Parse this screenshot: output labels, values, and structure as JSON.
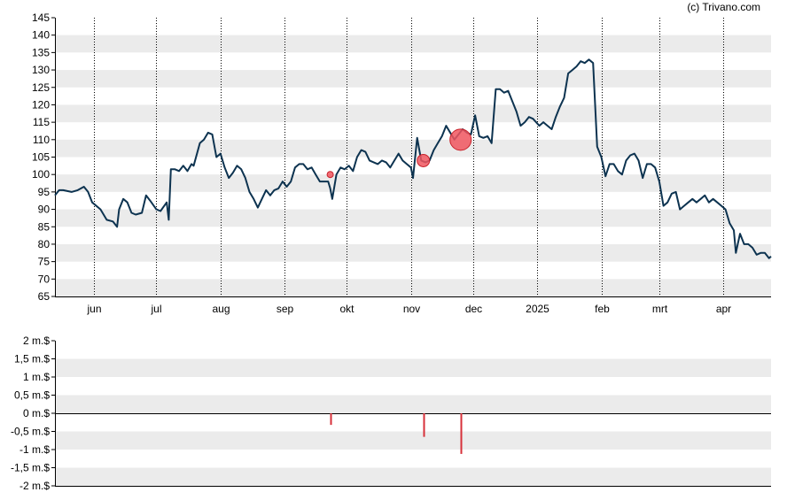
{
  "credit": "(c) Trivano.com",
  "colors": {
    "price_line": "#0d3350",
    "band": "#ebebeb",
    "marker_fill": "#f0565f",
    "marker_stroke": "#c8232c",
    "volume_bar": "#d7303a"
  },
  "chart_data": [
    {
      "type": "line",
      "title": "",
      "xlabel": "",
      "ylabel": "",
      "ylim": [
        65,
        145
      ],
      "yticks": [
        "145",
        "140",
        "135",
        "130",
        "125",
        "120",
        "115",
        "110",
        "105",
        "100",
        "95",
        "90",
        "85",
        "80",
        "75",
        "70",
        "65"
      ],
      "xticks": [
        "jun",
        "jul",
        "aug",
        "sep",
        "okt",
        "nov",
        "dec",
        "2025",
        "feb",
        "mrt",
        "apr"
      ],
      "x_range": [
        "2024-05-13",
        "2025-04-24"
      ],
      "grid": "horizontal bands, dotted vertical lines at month starts",
      "series": [
        {
          "points": [
            [
              "2024-05-13",
              94
            ],
            [
              "2024-05-15",
              95.5
            ],
            [
              "2024-05-17",
              95.5
            ],
            [
              "2024-05-21",
              95
            ],
            [
              "2024-05-24",
              95.5
            ],
            [
              "2024-05-27",
              96.5
            ],
            [
              "2024-05-29",
              95
            ],
            [
              "2024-05-31",
              92
            ],
            [
              "2024-06-04",
              90
            ],
            [
              "2024-06-07",
              87
            ],
            [
              "2024-06-10",
              86.5
            ],
            [
              "2024-06-12",
              85
            ],
            [
              "2024-06-13",
              90
            ],
            [
              "2024-06-15",
              93
            ],
            [
              "2024-06-17",
              92
            ],
            [
              "2024-06-19",
              89
            ],
            [
              "2024-06-21",
              88.5
            ],
            [
              "2024-06-24",
              89
            ],
            [
              "2024-06-26",
              94
            ],
            [
              "2024-06-28",
              92.5
            ],
            [
              "2024-07-01",
              90
            ],
            [
              "2024-07-03",
              89.5
            ],
            [
              "2024-07-06",
              92
            ],
            [
              "2024-07-07",
              87
            ],
            [
              "2024-07-08",
              101.5
            ],
            [
              "2024-07-10",
              101.5
            ],
            [
              "2024-07-12",
              101
            ],
            [
              "2024-07-14",
              102.5
            ],
            [
              "2024-07-16",
              101
            ],
            [
              "2024-07-18",
              103
            ],
            [
              "2024-07-19",
              102.5
            ],
            [
              "2024-07-22",
              109
            ],
            [
              "2024-07-24",
              110
            ],
            [
              "2024-07-26",
              112
            ],
            [
              "2024-07-28",
              111.5
            ],
            [
              "2024-07-30",
              105
            ],
            [
              "2024-08-01",
              106
            ],
            [
              "2024-08-03",
              102
            ],
            [
              "2024-08-05",
              99
            ],
            [
              "2024-08-07",
              100.5
            ],
            [
              "2024-08-09",
              102.5
            ],
            [
              "2024-08-11",
              101.5
            ],
            [
              "2024-08-13",
              99
            ],
            [
              "2024-08-15",
              95
            ],
            [
              "2024-08-17",
              93
            ],
            [
              "2024-08-19",
              90.5
            ],
            [
              "2024-08-21",
              93
            ],
            [
              "2024-08-23",
              95.5
            ],
            [
              "2024-08-25",
              94
            ],
            [
              "2024-08-27",
              95.5
            ],
            [
              "2024-08-29",
              96
            ],
            [
              "2024-08-31",
              98
            ],
            [
              "2024-09-02",
              96.5
            ],
            [
              "2024-09-04",
              98
            ],
            [
              "2024-09-06",
              102
            ],
            [
              "2024-09-08",
              103
            ],
            [
              "2024-09-10",
              103
            ],
            [
              "2024-09-12",
              101.5
            ],
            [
              "2024-09-14",
              102
            ],
            [
              "2024-09-16",
              100
            ],
            [
              "2024-09-18",
              98
            ],
            [
              "2024-09-20",
              98
            ],
            [
              "2024-09-22",
              98
            ],
            [
              "2024-09-23",
              96
            ],
            [
              "2024-09-24",
              93
            ],
            [
              "2024-09-26",
              100
            ],
            [
              "2024-09-28",
              102
            ],
            [
              "2024-09-30",
              101.5
            ],
            [
              "2024-10-02",
              102.5
            ],
            [
              "2024-10-04",
              101
            ],
            [
              "2024-10-06",
              105
            ],
            [
              "2024-10-08",
              107
            ],
            [
              "2024-10-10",
              106.5
            ],
            [
              "2024-10-12",
              104
            ],
            [
              "2024-10-14",
              103.5
            ],
            [
              "2024-10-16",
              103
            ],
            [
              "2024-10-18",
              104
            ],
            [
              "2024-10-20",
              103.5
            ],
            [
              "2024-10-22",
              102
            ],
            [
              "2024-10-24",
              104
            ],
            [
              "2024-10-26",
              106
            ],
            [
              "2024-10-28",
              104
            ],
            [
              "2024-10-30",
              103
            ],
            [
              "2024-11-01",
              102
            ],
            [
              "2024-11-02",
              99
            ],
            [
              "2024-11-04",
              110.5
            ],
            [
              "2024-11-06",
              104
            ],
            [
              "2024-11-08",
              103.5
            ],
            [
              "2024-11-10",
              104
            ],
            [
              "2024-11-12",
              107
            ],
            [
              "2024-11-14",
              109
            ],
            [
              "2024-11-16",
              111
            ],
            [
              "2024-11-18",
              114
            ],
            [
              "2024-11-20",
              112
            ],
            [
              "2024-11-22",
              110
            ],
            [
              "2024-11-24",
              111.5
            ],
            [
              "2024-11-26",
              113
            ],
            [
              "2024-11-28",
              112
            ],
            [
              "2024-11-30",
              111.5
            ],
            [
              "2024-12-02",
              117
            ],
            [
              "2024-12-04",
              111
            ],
            [
              "2024-12-06",
              110.5
            ],
            [
              "2024-12-08",
              111
            ],
            [
              "2024-12-10",
              109
            ],
            [
              "2024-12-12",
              124.5
            ],
            [
              "2024-12-14",
              124.5
            ],
            [
              "2024-12-16",
              123.5
            ],
            [
              "2024-12-18",
              124
            ],
            [
              "2024-12-20",
              121
            ],
            [
              "2024-12-22",
              118
            ],
            [
              "2024-12-24",
              114
            ],
            [
              "2024-12-26",
              115
            ],
            [
              "2024-12-28",
              116.5
            ],
            [
              "2024-12-30",
              116
            ],
            [
              "2025-01-02",
              114
            ],
            [
              "2025-01-04",
              115
            ],
            [
              "2025-01-06",
              114
            ],
            [
              "2025-01-08",
              113
            ],
            [
              "2025-01-10",
              116.5
            ],
            [
              "2025-01-12",
              119.5
            ],
            [
              "2025-01-14",
              122
            ],
            [
              "2025-01-16",
              129
            ],
            [
              "2025-01-18",
              130
            ],
            [
              "2025-01-20",
              131
            ],
            [
              "2025-01-22",
              132.5
            ],
            [
              "2025-01-24",
              132
            ],
            [
              "2025-01-26",
              133
            ],
            [
              "2025-01-28",
              132
            ],
            [
              "2025-01-30",
              108
            ],
            [
              "2025-02-01",
              105
            ],
            [
              "2025-02-03",
              99.5
            ],
            [
              "2025-02-05",
              103
            ],
            [
              "2025-02-07",
              103
            ],
            [
              "2025-02-09",
              101
            ],
            [
              "2025-02-11",
              100
            ],
            [
              "2025-02-13",
              104
            ],
            [
              "2025-02-15",
              105.5
            ],
            [
              "2025-02-17",
              106
            ],
            [
              "2025-02-19",
              104
            ],
            [
              "2025-02-21",
              99
            ],
            [
              "2025-02-23",
              103
            ],
            [
              "2025-02-25",
              103
            ],
            [
              "2025-02-27",
              102
            ],
            [
              "2025-03-01",
              98
            ],
            [
              "2025-03-03",
              91
            ],
            [
              "2025-03-05",
              92
            ],
            [
              "2025-03-07",
              94.5
            ],
            [
              "2025-03-09",
              95
            ],
            [
              "2025-03-11",
              90
            ],
            [
              "2025-03-13",
              91
            ],
            [
              "2025-03-15",
              92
            ],
            [
              "2025-03-17",
              93
            ],
            [
              "2025-03-19",
              92
            ],
            [
              "2025-03-21",
              93
            ],
            [
              "2025-03-23",
              94
            ],
            [
              "2025-03-25",
              92
            ],
            [
              "2025-03-27",
              93
            ],
            [
              "2025-03-29",
              92
            ],
            [
              "2025-03-31",
              91
            ],
            [
              "2025-04-02",
              90
            ],
            [
              "2025-04-04",
              86
            ],
            [
              "2025-04-06",
              84
            ],
            [
              "2025-04-07",
              77.5
            ],
            [
              "2025-04-09",
              83
            ],
            [
              "2025-04-11",
              80
            ],
            [
              "2025-04-13",
              80
            ],
            [
              "2025-04-15",
              79
            ],
            [
              "2025-04-17",
              77
            ],
            [
              "2025-04-19",
              77.5
            ],
            [
              "2025-04-21",
              77.5
            ],
            [
              "2025-04-23",
              76
            ],
            [
              "2025-04-24",
              76.5
            ]
          ]
        }
      ],
      "markers": [
        {
          "x": "2024-09-23",
          "y": 100,
          "size": 1
        },
        {
          "x": "2024-11-07",
          "y": 104,
          "size": 3
        },
        {
          "x": "2024-11-25",
          "y": 110,
          "size": 5
        }
      ]
    },
    {
      "type": "bar",
      "title": "",
      "ylim": [
        -2,
        2
      ],
      "yticks": [
        "2 m.$",
        "1,5 m.$",
        "1 m.$",
        "0,5 m.$",
        "0 m.$",
        "-0,5 m.$",
        "-1 m.$",
        "-1,5 m.$",
        "-2 m.$"
      ],
      "bars": [
        {
          "x": "2024-09-23",
          "value": -0.32
        },
        {
          "x": "2024-11-07",
          "value": -0.65
        },
        {
          "x": "2024-11-25",
          "value": -1.12
        }
      ]
    }
  ]
}
